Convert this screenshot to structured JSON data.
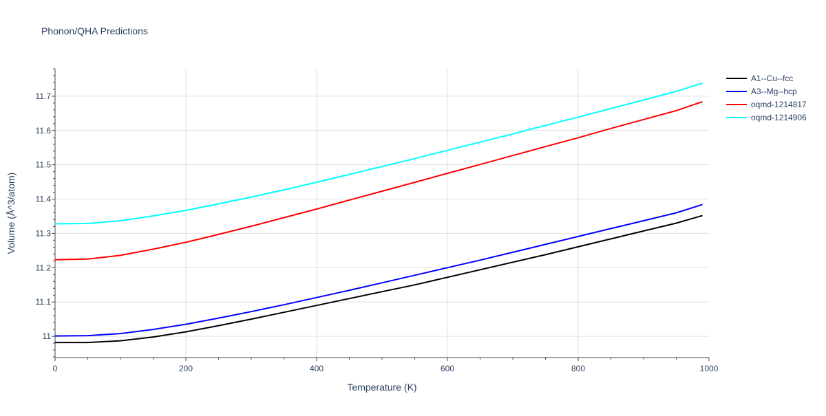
{
  "chart_data": {
    "type": "line",
    "title": "Phonon/QHA Predictions",
    "xlabel": "Temperature (K)",
    "ylabel": "Volume (Å^3/atom)",
    "xlim": [
      0,
      1000
    ],
    "ylim": [
      10.938,
      11.78
    ],
    "xticks": [
      0,
      200,
      400,
      600,
      800,
      1000
    ],
    "yticks": [
      11,
      11.1,
      11.2,
      11.3,
      11.4,
      11.5,
      11.6,
      11.7
    ],
    "ytick_labels": [
      "11",
      "11.1",
      "11.2",
      "11.3",
      "11.4",
      "11.5",
      "11.6",
      "11.7"
    ],
    "grid": true,
    "legend_position": "top-right",
    "x": [
      0,
      50,
      100,
      150,
      200,
      250,
      300,
      350,
      400,
      450,
      500,
      550,
      600,
      650,
      700,
      750,
      800,
      850,
      900,
      950,
      990
    ],
    "series": [
      {
        "name": "A1--Cu--fcc",
        "color": "#000000",
        "values": [
          10.982,
          10.982,
          10.987,
          10.998,
          11.013,
          11.031,
          11.05,
          11.07,
          11.09,
          11.11,
          11.13,
          11.15,
          11.172,
          11.194,
          11.216,
          11.238,
          11.261,
          11.284,
          11.307,
          11.33,
          11.352
        ]
      },
      {
        "name": "A3--Mg--hcp",
        "color": "#0000ff",
        "values": [
          11.001,
          11.002,
          11.008,
          11.02,
          11.035,
          11.053,
          11.072,
          11.092,
          11.113,
          11.134,
          11.156,
          11.178,
          11.2,
          11.222,
          11.245,
          11.268,
          11.291,
          11.314,
          11.337,
          11.36,
          11.384
        ]
      },
      {
        "name": "oqmd-1214817",
        "color": "#ff0000",
        "values": [
          11.223,
          11.225,
          11.236,
          11.254,
          11.274,
          11.297,
          11.321,
          11.346,
          11.371,
          11.397,
          11.423,
          11.449,
          11.475,
          11.501,
          11.527,
          11.553,
          11.579,
          11.606,
          11.632,
          11.658,
          11.684
        ]
      },
      {
        "name": "oqmd-1214906",
        "color": "#00ffff",
        "values": [
          11.328,
          11.329,
          11.337,
          11.351,
          11.367,
          11.386,
          11.406,
          11.427,
          11.449,
          11.472,
          11.495,
          11.518,
          11.542,
          11.566,
          11.59,
          11.615,
          11.639,
          11.664,
          11.689,
          11.714,
          11.738
        ]
      }
    ]
  }
}
